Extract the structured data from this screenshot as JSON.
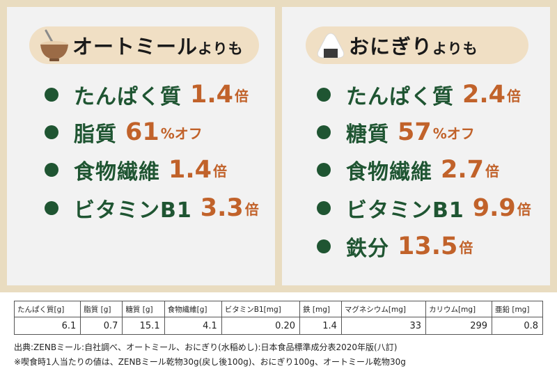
{
  "left": {
    "title": "オートミール",
    "title_suffix": "よりも",
    "items": [
      {
        "label": "たんぱく質",
        "value": "1.4",
        "unit": "倍"
      },
      {
        "label": "脂質",
        "value": "61",
        "unit": "%オフ"
      },
      {
        "label": "食物繊維",
        "value": "1.4",
        "unit": "倍"
      },
      {
        "label": "ビタミンB1",
        "value": "3.3",
        "unit": "倍"
      }
    ]
  },
  "right": {
    "title": "おにぎり",
    "title_suffix": "よりも",
    "items": [
      {
        "label": "たんぱく質",
        "value": "2.4",
        "unit": "倍"
      },
      {
        "label": "糖質",
        "value": "57",
        "unit": "%オフ"
      },
      {
        "label": "食物繊維",
        "value": "2.7",
        "unit": "倍"
      },
      {
        "label": "ビタミンB1",
        "value": "9.9",
        "unit": "倍"
      },
      {
        "label": "鉄分",
        "value": "13.5",
        "unit": "倍"
      }
    ]
  },
  "table": {
    "headers": [
      "たんぱく質[g]",
      "脂質 [g]",
      "糖質 [g]",
      "食物繊維[g]",
      "ビタミンB1[mg]",
      "鉄 [mg]",
      "マグネシウム[mg]",
      "カリウム[mg]",
      "亜鉛 [mg]"
    ],
    "values": [
      "6.1",
      "0.7",
      "15.1",
      "4.1",
      "0.20",
      "1.4",
      "33",
      "299",
      "0.8"
    ]
  },
  "footnotes": {
    "source": "出典:ZENBミール:自社調べ、オートミール、おにぎり(水稲めし):日本食品標準成分表2020年版(八訂)",
    "note": "※喫食時1人当たりの値は、ZENBミール乾物30g(戻し後100g)、おにぎり100g、オートミール乾物30g"
  },
  "icons": {
    "left": "oatmeal-bowl-icon",
    "right": "onigiri-icon"
  },
  "colors": {
    "accent": "#c1622a",
    "green": "#1f5532",
    "frame": "#e9dcc0",
    "pill": "#f0dfc4"
  }
}
